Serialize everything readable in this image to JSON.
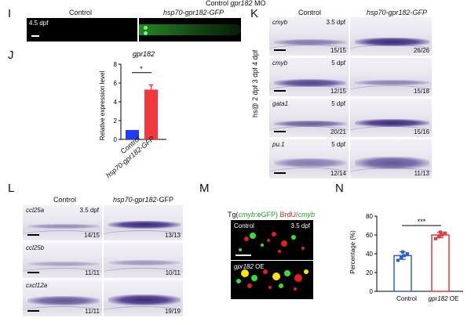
{
  "header": {
    "prefix": "Control ",
    "gene": "gpr182",
    "suffix": " MO"
  },
  "panel_I": {
    "label": "I",
    "control": "Control",
    "treatment": "hsp70-gpr182-GFP",
    "stage": "4.5 dpf"
  },
  "panel_J": {
    "label": "J",
    "gene": "gpr182",
    "ylabel": "Relative expression level",
    "star": "*",
    "colors": {
      "control": "#1f3df2",
      "treatment": "#f2383f"
    }
  },
  "chart_data": {
    "type": "bar",
    "title": "gpr182",
    "categories": [
      "Control",
      "hsp70-gpr182-GFP"
    ],
    "values": [
      1,
      5.3
    ],
    "errors": [
      0,
      0.5
    ],
    "ylabel": "Relative expression level",
    "ylim": [
      0,
      8
    ],
    "yticks": [
      0,
      2,
      4,
      6,
      8
    ],
    "significance": "*"
  },
  "panel_K": {
    "label": "K",
    "control": "Control",
    "treatment": "hsp70-gpr182-GFP",
    "side": "hs@ 2 dpf 3 dpf 4 dpf",
    "rows": [
      {
        "gene": "cmyb",
        "stage": "3.5 dpf",
        "left": "15/15",
        "right": "26/26"
      },
      {
        "gene": "cmyb",
        "stage": "5 dpf",
        "left": "12/15",
        "right": "15/18"
      },
      {
        "gene": "gata1",
        "stage": "5 dpf",
        "left": "20/21",
        "right": "15/16"
      },
      {
        "gene": "pu.1",
        "stage": "5 dpf",
        "left": "12/14",
        "right": "11/13"
      }
    ]
  },
  "panel_L": {
    "label": "L",
    "control": "Control",
    "treatment_gene": "hsp70-gpr182",
    "treatment_suffix": "-GFP",
    "stage": "3.5 dpf",
    "rows": [
      {
        "gene": "ccl25a",
        "left": "14/15",
        "right": "13/13"
      },
      {
        "gene": "ccl25b",
        "left": "11/11",
        "right": "10/11"
      },
      {
        "gene": "cxcl12a",
        "left": "11/11",
        "right": "19/19"
      }
    ]
  },
  "panel_M": {
    "label": "M",
    "title_a": "Tg(",
    "title_b": "cmyb",
    "title_c": ":eGFP)",
    "title_d": " BrdU/",
    "title_e": "cmyb",
    "control": "Control",
    "stage": "3.5 dpf",
    "oe_gene": "gpr182",
    "oe_suffix": " OE"
  },
  "panel_N": {
    "label": "N",
    "ylabel": "Percentage (%)",
    "control": "Control",
    "oe_gene": "gpr182",
    "oe_suffix": " OE",
    "significance": "***",
    "ylim": [
      0,
      80
    ],
    "yticks": [
      0,
      20,
      40,
      60,
      80
    ],
    "values": [
      38,
      60
    ],
    "errors": [
      4,
      3
    ],
    "points_control": [
      33,
      36,
      38,
      40,
      42
    ],
    "points_oe": [
      56,
      58,
      60,
      62,
      63
    ],
    "colors": {
      "control": "#2b5fd9",
      "oe": "#e8383c"
    }
  }
}
